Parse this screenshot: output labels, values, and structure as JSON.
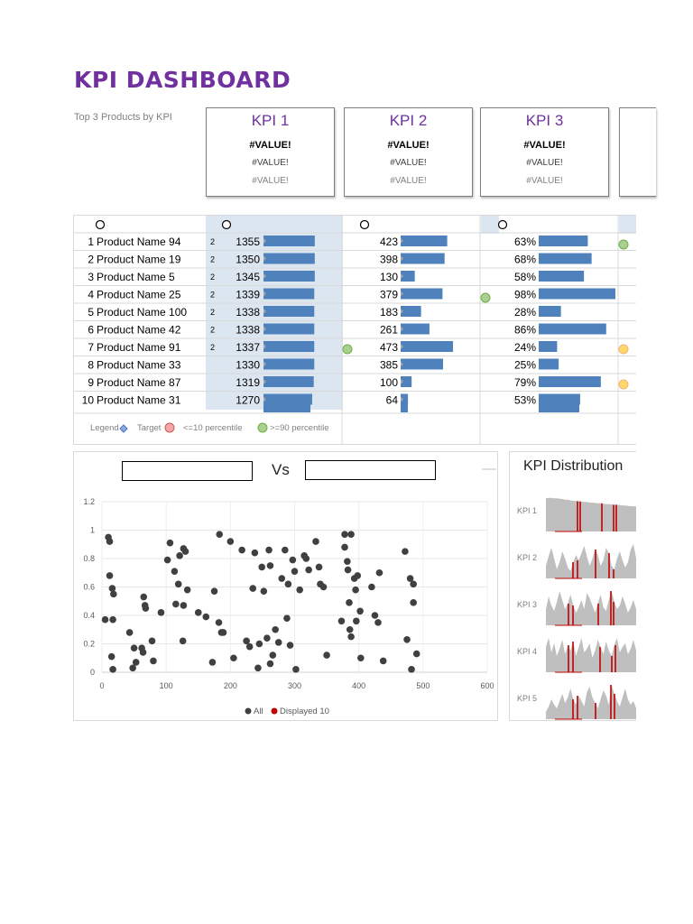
{
  "title": "KPI DASHBOARD",
  "top3_label": "Top 3 Products by KPI",
  "kpi_cards": [
    {
      "title": "KPI 1",
      "v1": "#VALUE!",
      "v2": "#VALUE!",
      "v3": "#VALUE!"
    },
    {
      "title": "KPI 2",
      "v1": "#VALUE!",
      "v2": "#VALUE!",
      "v3": "#VALUE!"
    },
    {
      "title": "KPI 3",
      "v1": "#VALUE!",
      "v2": "#VALUE!",
      "v3": "#VALUE!"
    }
  ],
  "table": {
    "rows": [
      {
        "rank": "1",
        "name": "Product Name 94",
        "tag": "2",
        "kpi1": "1355",
        "kpi2": "423",
        "kpi3": "63%"
      },
      {
        "rank": "2",
        "name": "Product Name 19",
        "tag": "2",
        "kpi1": "1350",
        "kpi2": "398",
        "kpi3": "68%"
      },
      {
        "rank": "3",
        "name": "Product Name 5",
        "tag": "2",
        "kpi1": "1345",
        "kpi2": "130",
        "kpi3": "58%"
      },
      {
        "rank": "4",
        "name": "Product Name 25",
        "tag": "2",
        "kpi1": "1339",
        "kpi2": "379",
        "kpi3": "98%"
      },
      {
        "rank": "5",
        "name": "Product Name 100",
        "tag": "2",
        "kpi1": "1338",
        "kpi2": "183",
        "kpi3": "28%"
      },
      {
        "rank": "6",
        "name": "Product Name 42",
        "tag": "2",
        "kpi1": "1338",
        "kpi2": "261",
        "kpi3": "86%"
      },
      {
        "rank": "7",
        "name": "Product Name 91",
        "tag": "2",
        "kpi1": "1337",
        "kpi2": "473",
        "kpi3": "24%"
      },
      {
        "rank": "8",
        "name": "Product Name 33",
        "tag": "",
        "kpi1": "1330",
        "kpi2": "385",
        "kpi3": "25%"
      },
      {
        "rank": "9",
        "name": "Product Name 87",
        "tag": "",
        "kpi1": "1319",
        "kpi2": "100",
        "kpi3": "79%"
      },
      {
        "rank": "10",
        "name": "Product Name 31",
        "tag": "",
        "kpi1": "1270",
        "kpi2": "64",
        "kpi3": "53%"
      }
    ],
    "bar_fraction": {
      "kpi1": [
        0.98,
        0.98,
        0.98,
        0.97,
        0.97,
        0.97,
        0.97,
        0.97,
        0.96,
        0.93
      ],
      "kpi2": [
        0.89,
        0.84,
        0.27,
        0.8,
        0.39,
        0.55,
        1.0,
        0.81,
        0.21,
        0.14
      ],
      "kpi3": [
        0.64,
        0.69,
        0.59,
        1.0,
        0.29,
        0.88,
        0.24,
        0.26,
        0.81,
        0.54
      ]
    },
    "colors": {
      "bar": "#4f81bd",
      "highlight": "#dce6f1",
      "green": "#a9d08e",
      "red": "#f4a5a5",
      "orange": "#ffd966"
    }
  },
  "legend": {
    "legend_label": "Legend",
    "target_label": "Target",
    "low_label": "<=10 percentile",
    "high_label": ">=90 percentile"
  },
  "scatter": {
    "vs_label": "Vs",
    "selector_left": "",
    "selector_right": "",
    "legend_all": "All",
    "legend_displayed": "Displayed 10",
    "chart_data": {
      "type": "scatter",
      "xlim": [
        0,
        600
      ],
      "ylim": [
        0,
        1.2
      ],
      "xticks": [
        "0",
        "100",
        "200",
        "300",
        "400",
        "500",
        "600"
      ],
      "yticks": [
        "0",
        "0.2",
        "0.4",
        "0.6",
        "0.8",
        "1",
        "1.2"
      ],
      "series": [
        {
          "name": "All",
          "color": "#404040",
          "points": [
            [
              10,
              0.95
            ],
            [
              12,
              0.92
            ],
            [
              12,
              0.68
            ],
            [
              16,
              0.59
            ],
            [
              18,
              0.55
            ],
            [
              5,
              0.37
            ],
            [
              17,
              0.37
            ],
            [
              15,
              0.11
            ],
            [
              17,
              0.02
            ],
            [
              43,
              0.28
            ],
            [
              50,
              0.17
            ],
            [
              53,
              0.07
            ],
            [
              48,
              0.03
            ],
            [
              62,
              0.17
            ],
            [
              64,
              0.14
            ],
            [
              65,
              0.53
            ],
            [
              67,
              0.47
            ],
            [
              68,
              0.45
            ],
            [
              78,
              0.22
            ],
            [
              80,
              0.08
            ],
            [
              92,
              0.42
            ],
            [
              102,
              0.79
            ],
            [
              106,
              0.91
            ],
            [
              113,
              0.71
            ],
            [
              115,
              0.48
            ],
            [
              119,
              0.62
            ],
            [
              121,
              0.82
            ],
            [
              126,
              0.22
            ],
            [
              127,
              0.47
            ],
            [
              127,
              0.87
            ],
            [
              130,
              0.85
            ],
            [
              133,
              0.58
            ],
            [
              150,
              0.42
            ],
            [
              162,
              0.39
            ],
            [
              172,
              0.07
            ],
            [
              175,
              0.57
            ],
            [
              182,
              0.35
            ],
            [
              183,
              0.97
            ],
            [
              186,
              0.28
            ],
            [
              189,
              0.28
            ],
            [
              200,
              0.92
            ],
            [
              205,
              0.1
            ],
            [
              218,
              0.86
            ],
            [
              225,
              0.22
            ],
            [
              230,
              0.18
            ],
            [
              235,
              0.59
            ],
            [
              238,
              0.84
            ],
            [
              243,
              0.03
            ],
            [
              245,
              0.2
            ],
            [
              249,
              0.74
            ],
            [
              252,
              0.57
            ],
            [
              257,
              0.24
            ],
            [
              260,
              0.86
            ],
            [
              262,
              0.75
            ],
            [
              262,
              0.06
            ],
            [
              266,
              0.12
            ],
            [
              270,
              0.3
            ],
            [
              275,
              0.21
            ],
            [
              280,
              0.66
            ],
            [
              285,
              0.86
            ],
            [
              288,
              0.38
            ],
            [
              290,
              0.62
            ],
            [
              293,
              0.19
            ],
            [
              297,
              0.79
            ],
            [
              300,
              0.71
            ],
            [
              302,
              0.02
            ],
            [
              315,
              0.82
            ],
            [
              318,
              0.8
            ],
            [
              322,
              0.72
            ],
            [
              333,
              0.92
            ],
            [
              338,
              0.74
            ],
            [
              340,
              0.62
            ],
            [
              345,
              0.6
            ],
            [
              350,
              0.12
            ],
            [
              378,
              0.97
            ],
            [
              378,
              0.88
            ],
            [
              382,
              0.78
            ],
            [
              383,
              0.72
            ],
            [
              385,
              0.49
            ],
            [
              386,
              0.3
            ],
            [
              388,
              0.25
            ],
            [
              388,
              0.97
            ],
            [
              393,
              0.66
            ],
            [
              396,
              0.36
            ],
            [
              398,
              0.68
            ],
            [
              402,
              0.43
            ],
            [
              403,
              0.1
            ],
            [
              420,
              0.6
            ],
            [
              425,
              0.4
            ],
            [
              430,
              0.35
            ],
            [
              432,
              0.7
            ],
            [
              438,
              0.08
            ],
            [
              472,
              0.85
            ],
            [
              475,
              0.23
            ],
            [
              480,
              0.66
            ],
            [
              485,
              0.62
            ],
            [
              485,
              0.49
            ],
            [
              482,
              0.02
            ],
            [
              490,
              0.13
            ],
            [
              373,
              0.36
            ],
            [
              395,
              0.58
            ],
            [
              308,
              0.58
            ]
          ]
        },
        {
          "name": "Displayed 10",
          "color": "#c00000",
          "points": []
        }
      ]
    }
  },
  "distribution": {
    "title": "KPI Distribution",
    "rows": [
      "KPI 1",
      "KPI 2",
      "KPI 3",
      "KPI 4",
      "KPI 5"
    ],
    "profiles": [
      [
        0.92,
        0.93,
        0.93,
        0.92,
        0.92,
        0.91,
        0.9,
        0.88,
        0.88,
        0.86,
        0.85,
        0.84,
        0.84,
        0.83,
        0.82,
        0.82,
        0.8,
        0.8,
        0.79,
        0.78,
        0.78,
        0.77,
        0.76,
        0.76,
        0.75,
        0.74,
        0.74,
        0.73,
        0.72,
        0.72,
        0.71,
        0.7,
        0.7,
        0.69
      ],
      [
        0.35,
        0.62,
        0.85,
        0.55,
        0.25,
        0.45,
        0.75,
        0.55,
        0.3,
        0.2,
        0.45,
        0.65,
        0.5,
        0.7,
        0.9,
        0.6,
        0.35,
        0.55,
        0.8,
        0.65,
        0.35,
        0.5,
        0.85,
        0.7,
        0.35,
        0.25,
        0.55,
        0.75,
        0.5,
        0.3,
        0.45,
        0.8,
        0.95,
        0.55
      ],
      [
        0.45,
        0.8,
        0.55,
        0.4,
        0.65,
        0.95,
        0.7,
        0.45,
        0.6,
        0.85,
        0.55,
        0.35,
        0.5,
        0.7,
        0.45,
        0.9,
        0.75,
        0.55,
        0.35,
        0.6,
        0.85,
        0.5,
        0.4,
        0.7,
        0.95,
        0.65,
        0.45,
        0.55,
        0.8,
        0.6,
        0.35,
        0.5,
        0.7,
        0.45
      ],
      [
        0.7,
        0.95,
        0.55,
        0.8,
        0.45,
        0.65,
        0.9,
        0.5,
        0.75,
        0.6,
        0.85,
        0.45,
        0.7,
        0.95,
        0.55,
        0.65,
        0.8,
        0.4,
        0.6,
        0.9,
        0.7,
        0.5,
        0.85,
        0.6,
        0.45,
        0.75,
        0.95,
        0.55,
        0.7,
        0.8,
        0.5,
        0.65,
        0.9,
        0.6
      ],
      [
        0.2,
        0.35,
        0.55,
        0.4,
        0.3,
        0.5,
        0.7,
        0.45,
        0.6,
        0.85,
        0.55,
        0.4,
        0.65,
        0.5,
        0.35,
        0.75,
        0.9,
        0.6,
        0.45,
        0.3,
        0.55,
        0.8,
        0.65,
        0.4,
        0.95,
        0.7,
        0.5,
        0.35,
        0.6,
        0.85,
        0.55,
        0.4,
        0.5,
        0.3
      ]
    ],
    "markers": [
      [
        0.35,
        0.38,
        0.62,
        0.75,
        0.78
      ],
      [
        0.3,
        0.35,
        0.55,
        0.7,
        0.75
      ],
      [
        0.25,
        0.3,
        0.58,
        0.72,
        0.75
      ],
      [
        0.25,
        0.3,
        0.6,
        0.73,
        0.77
      ],
      [
        0.3,
        0.35,
        0.55,
        0.72,
        0.76
      ]
    ]
  }
}
